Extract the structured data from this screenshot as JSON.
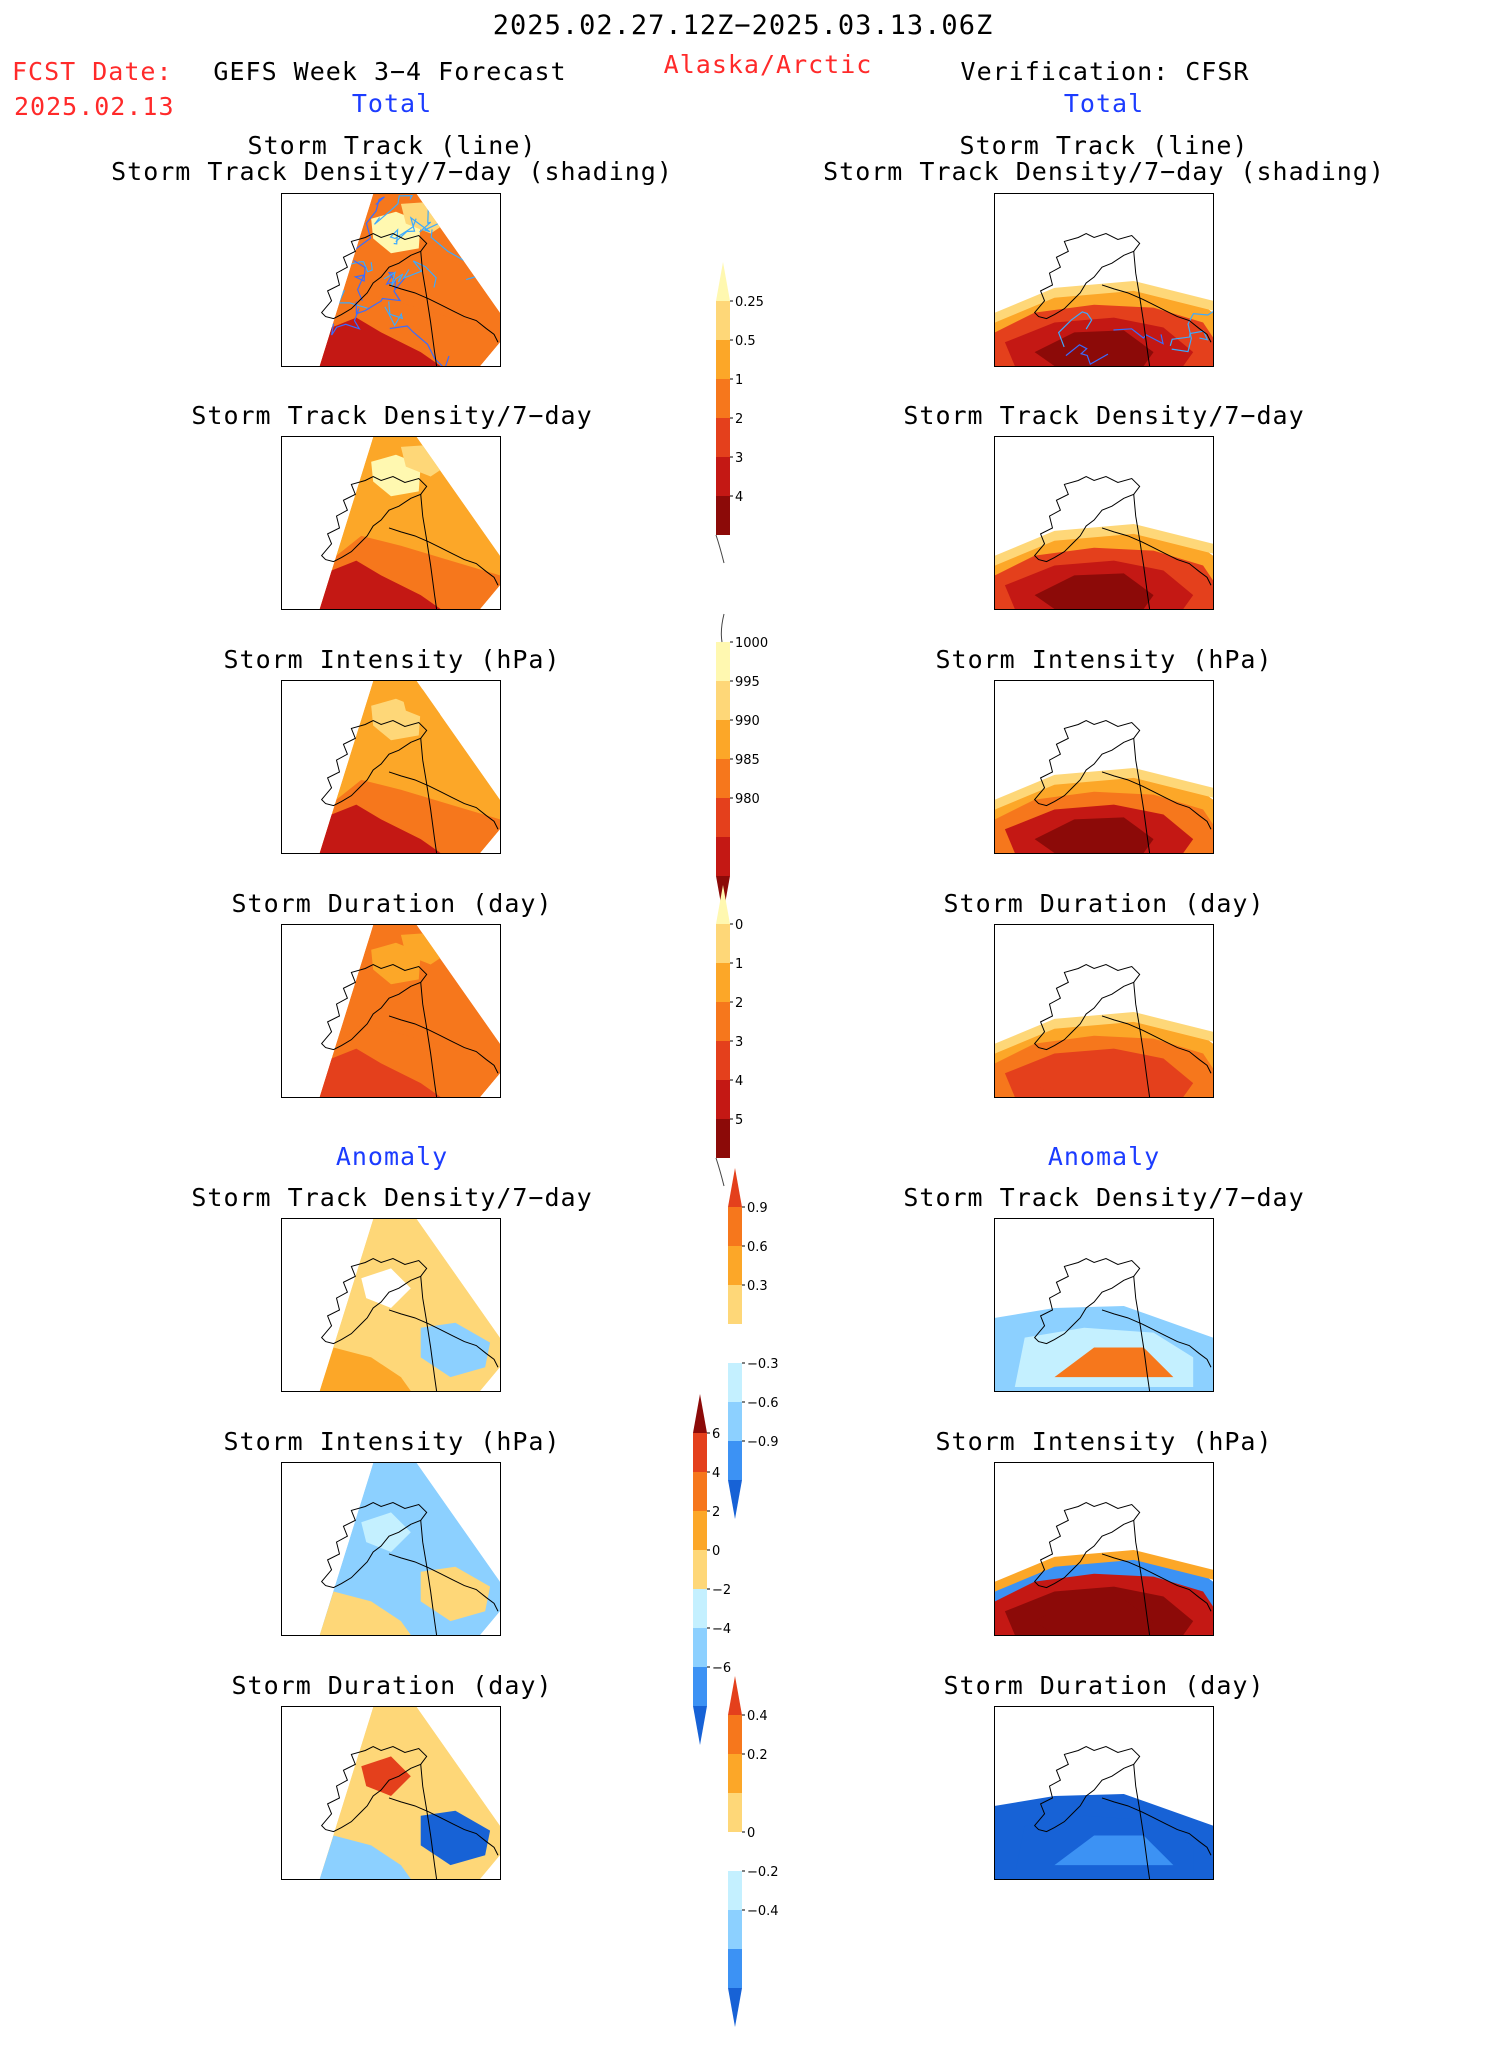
{
  "header": {
    "period": "2025.02.27.12Z−2025.03.13.06Z",
    "fcst_label": "FCST Date:",
    "fcst_date": "2025.02.13",
    "left_model": "GEFS Week 3−4 Forecast",
    "region": "Alaska/Arctic",
    "right_model": "Verification: CFSR",
    "total_label": "Total",
    "anomaly_label": "Anomaly"
  },
  "panel_titles": {
    "track_line": "Storm Track (line)",
    "track_density_shading": "Storm Track Density/7−day (shading)",
    "track_density": "Storm Track Density/7−day",
    "intensity": "Storm Intensity (hPa)",
    "duration": "Storm Duration (day)"
  },
  "colors": {
    "c1": "#fff8b0",
    "c2": "#fed778",
    "c3": "#fca728",
    "c4": "#f6771c",
    "c5": "#e4401c",
    "c6": "#c41814",
    "c7": "#8c0a08",
    "b1": "#c4f0ff",
    "b2": "#8cd0ff",
    "b3": "#3c92f4",
    "b4": "#1762d6",
    "b5": "#0b3fb0",
    "track_blue": "#3caaff"
  },
  "chart_data": [
    {
      "type": "heatmap",
      "title": "Storm Track (line) / Storm Track Density/7−day (shading)",
      "column": "GEFS Week 3−4 Forecast",
      "section": "Total"
    },
    {
      "type": "heatmap",
      "title": "Storm Track (line) / Storm Track Density/7−day (shading)",
      "column": "Verification: CFSR",
      "section": "Total"
    },
    {
      "type": "heatmap",
      "title": "Storm Track Density/7−day",
      "column": "GEFS Week 3−4 Forecast",
      "section": "Total"
    },
    {
      "type": "heatmap",
      "title": "Storm Track Density/7−day",
      "column": "Verification: CFSR",
      "section": "Total"
    },
    {
      "type": "heatmap",
      "title": "Storm Intensity (hPa)",
      "column": "GEFS Week 3−4 Forecast",
      "section": "Total"
    },
    {
      "type": "heatmap",
      "title": "Storm Intensity (hPa)",
      "column": "Verification: CFSR",
      "section": "Total"
    },
    {
      "type": "heatmap",
      "title": "Storm Duration (day)",
      "column": "GEFS Week 3−4 Forecast",
      "section": "Total"
    },
    {
      "type": "heatmap",
      "title": "Storm Duration (day)",
      "column": "Verification: CFSR",
      "section": "Total"
    },
    {
      "type": "heatmap",
      "title": "Storm Track Density/7−day",
      "column": "GEFS Week 3−4 Forecast",
      "section": "Anomaly"
    },
    {
      "type": "heatmap",
      "title": "Storm Track Density/7−day",
      "column": "Verification: CFSR",
      "section": "Anomaly"
    },
    {
      "type": "heatmap",
      "title": "Storm Intensity (hPa)",
      "column": "GEFS Week 3−4 Forecast",
      "section": "Anomaly"
    },
    {
      "type": "heatmap",
      "title": "Storm Intensity (hPa)",
      "column": "Verification: CFSR",
      "section": "Anomaly"
    },
    {
      "type": "heatmap",
      "title": "Storm Duration (day)",
      "column": "GEFS Week 3−4 Forecast",
      "section": "Anomaly"
    },
    {
      "type": "heatmap",
      "title": "Storm Duration (day)",
      "column": "Verification: CFSR",
      "section": "Anomaly"
    }
  ],
  "colorbars": {
    "density": {
      "ticks": [
        "0.25",
        "0.5",
        "1",
        "2",
        "3",
        "4"
      ]
    },
    "intensity": {
      "ticks": [
        "1000",
        "995",
        "990",
        "985",
        "980"
      ]
    },
    "duration": {
      "ticks": [
        "0",
        "1",
        "2",
        "3",
        "4",
        "5"
      ]
    },
    "density_anom": {
      "ticks": [
        "0.9",
        "0.6",
        "0.3",
        "−0.3",
        "−0.6",
        "−0.9"
      ]
    },
    "intensity_anom": {
      "ticks": [
        "6",
        "4",
        "2",
        "0",
        "−2",
        "−4",
        "−6"
      ]
    },
    "duration_anom": {
      "ticks": [
        "0.4",
        "0.2",
        "0",
        "−0.2",
        "−0.4"
      ]
    }
  }
}
